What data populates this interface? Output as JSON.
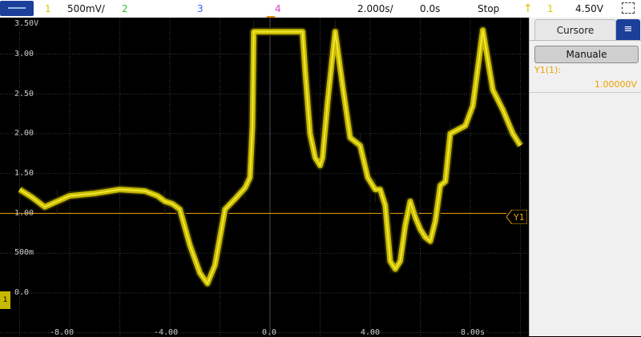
{
  "topbar": {
    "ch1_num": "1",
    "ch1_scale": "500mV/",
    "ch2_num": "2",
    "ch3_num": "3",
    "ch4_num": "4",
    "timebase": "2.000s/",
    "delay": "0.0s",
    "run_state": "Stop",
    "trig_num": "1",
    "trig_level": "4.50V"
  },
  "scope": {
    "y_labels": [
      "3.50V",
      "3.00",
      "2.50",
      "2.00",
      "1.50",
      "1.00",
      "500m",
      "0.0"
    ],
    "x_labels": [
      "-8.00",
      "-4.00",
      "0.0",
      "4.00",
      "8.00s"
    ],
    "ground_chip": "1",
    "cursor_tag": "Y1",
    "colors": {
      "trace": "#c8b800",
      "trace_edge": "#f0e830",
      "cursor": "#e8a000",
      "grid": "#505050"
    }
  },
  "panel": {
    "tab_label": "Cursore",
    "tab_icon": "cursor-settings-icon",
    "mode_button": "Manuale",
    "y1_label": "Y1(1):",
    "y1_value": "1.00000V"
  },
  "chart_data": {
    "type": "line",
    "x_unit": "s",
    "y_unit": "V",
    "xlim": [
      -10,
      10
    ],
    "ylim": [
      -0.25,
      3.5
    ],
    "cursor_y1": 1.0,
    "series": [
      {
        "x": [
          -10,
          -9.5,
          -9,
          -8.5,
          -8,
          -7,
          -6,
          -5,
          -4.5,
          -4.2,
          -3.9,
          -3.6,
          -3.2,
          -2.8,
          -2.5,
          -2.2,
          -1.8,
          -1.4,
          -1.0,
          -0.8,
          -0.7,
          -0.65,
          0.5,
          1.3,
          1.4,
          1.6,
          1.8,
          2.0,
          2.1,
          2.3,
          2.6,
          2.9,
          3.2,
          3.6,
          3.9,
          4.1,
          4.2,
          4.4,
          4.6,
          4.8,
          5.0,
          5.2,
          5.4,
          5.6,
          5.8,
          6.0,
          6.2,
          6.4,
          6.6,
          6.8,
          7.0,
          7.2,
          7.5,
          7.8,
          8.1,
          8.5,
          8.9,
          9.3,
          9.7,
          10.0
        ],
        "y": [
          1.3,
          1.2,
          1.08,
          1.15,
          1.22,
          1.25,
          1.3,
          1.28,
          1.22,
          1.15,
          1.12,
          1.05,
          0.6,
          0.25,
          0.12,
          0.35,
          1.05,
          1.18,
          1.32,
          1.45,
          2.1,
          3.28,
          3.28,
          3.28,
          2.8,
          2.0,
          1.7,
          1.6,
          1.7,
          2.4,
          3.28,
          2.6,
          1.95,
          1.85,
          1.45,
          1.35,
          1.3,
          1.3,
          1.1,
          0.4,
          0.3,
          0.4,
          0.85,
          1.15,
          0.95,
          0.8,
          0.7,
          0.65,
          0.9,
          1.35,
          1.4,
          2.0,
          2.05,
          2.1,
          2.35,
          3.3,
          2.55,
          2.3,
          2.0,
          1.85
        ]
      }
    ]
  }
}
